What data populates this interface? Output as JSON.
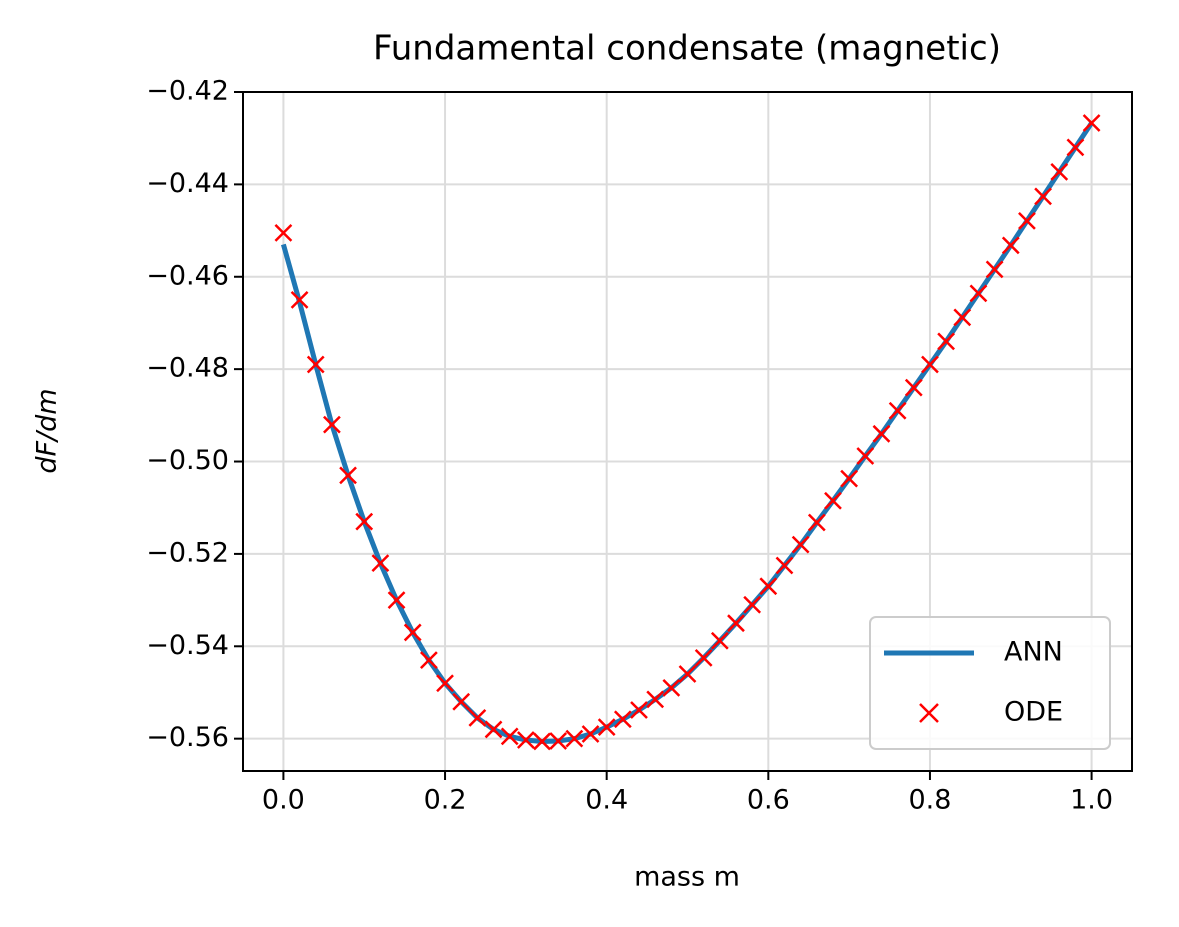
{
  "chart_data": {
    "type": "line",
    "title": "Fundamental condensate (magnetic)",
    "x_label": "mass m",
    "y_label": "dF/dm",
    "x": [
      0,
      0.02,
      0.04,
      0.06,
      0.08,
      0.1,
      0.12,
      0.14,
      0.16,
      0.18,
      0.2,
      0.22,
      0.24,
      0.26,
      0.28,
      0.3,
      0.32,
      0.34,
      0.36,
      0.38,
      0.4,
      0.42,
      0.44,
      0.46,
      0.48,
      0.5,
      0.52,
      0.54,
      0.56,
      0.58,
      0.6,
      0.62,
      0.64,
      0.66,
      0.68,
      0.7,
      0.72,
      0.74,
      0.76,
      0.78,
      0.8,
      0.82,
      0.84,
      0.86,
      0.88,
      0.9,
      0.92,
      0.94,
      0.96,
      0.98,
      1.0
    ],
    "series": [
      {
        "name": "ANN",
        "color": "#1f77b4",
        "style": "line",
        "values": [
          -0.453,
          -0.4655,
          -0.479,
          -0.492,
          -0.503,
          -0.513,
          -0.522,
          -0.53,
          -0.537,
          -0.543,
          -0.548,
          -0.552,
          -0.5555,
          -0.558,
          -0.5595,
          -0.5603,
          -0.5606,
          -0.5605,
          -0.56,
          -0.559,
          -0.5575,
          -0.5558,
          -0.5538,
          -0.5515,
          -0.549,
          -0.546,
          -0.5425,
          -0.5388,
          -0.535,
          -0.531,
          -0.527,
          -0.5225,
          -0.518,
          -0.5132,
          -0.5085,
          -0.5037,
          -0.4988,
          -0.494,
          -0.489,
          -0.484,
          -0.479,
          -0.474,
          -0.4688,
          -0.4636,
          -0.4584,
          -0.4532,
          -0.4479,
          -0.4426,
          -0.4373,
          -0.432,
          -0.4267
        ]
      },
      {
        "name": "ODE",
        "color": "#ff0000",
        "style": "marker",
        "values": [
          -0.4505,
          -0.465,
          -0.479,
          -0.492,
          -0.503,
          -0.513,
          -0.522,
          -0.53,
          -0.537,
          -0.543,
          -0.548,
          -0.552,
          -0.5555,
          -0.558,
          -0.5595,
          -0.5603,
          -0.5606,
          -0.5605,
          -0.56,
          -0.559,
          -0.5575,
          -0.5558,
          -0.5538,
          -0.5515,
          -0.549,
          -0.546,
          -0.5425,
          -0.5388,
          -0.535,
          -0.531,
          -0.527,
          -0.5225,
          -0.518,
          -0.5132,
          -0.5085,
          -0.5037,
          -0.4988,
          -0.494,
          -0.489,
          -0.484,
          -0.479,
          -0.474,
          -0.4688,
          -0.4636,
          -0.4584,
          -0.4532,
          -0.4479,
          -0.4426,
          -0.4373,
          -0.432,
          -0.4267
        ]
      }
    ],
    "xlim": [
      -0.05,
      1.05
    ],
    "ylim": [
      -0.567,
      -0.42
    ],
    "xticks": [
      {
        "value": 0,
        "label": "0.0"
      },
      0.2,
      0.4,
      0.6,
      0.8,
      {
        "value": 1,
        "label": "1.0"
      }
    ],
    "yticks": [
      {
        "value": -0.42,
        "label": "−0.42"
      },
      {
        "value": -0.44,
        "label": "−0.44"
      },
      {
        "value": -0.46,
        "label": "−0.46"
      },
      {
        "value": -0.48,
        "label": "−0.48"
      },
      {
        "value": -0.5,
        "label": "−0.50"
      },
      {
        "value": -0.52,
        "label": "−0.52"
      },
      {
        "value": -0.54,
        "label": "−0.54"
      },
      {
        "value": -0.56,
        "label": "−0.56"
      }
    ],
    "grid": true,
    "legend": "lower right"
  }
}
